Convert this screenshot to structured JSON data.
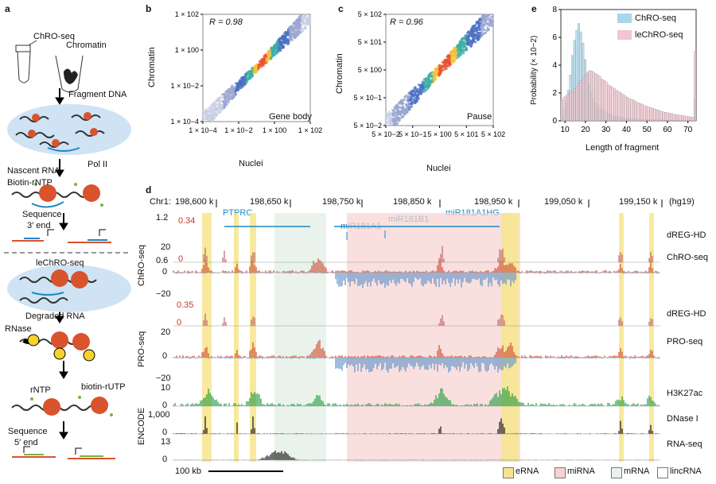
{
  "panels": {
    "a": "a",
    "b": "b",
    "c": "c",
    "d": "d",
    "e": "e"
  },
  "panel_a": {
    "top_title": "ChRO-seq",
    "chromatin": "Chromatin",
    "fragment": "Fragment DNA",
    "nascent": "Nascent RNA",
    "biotin_rntp": "Biotin-rNTP",
    "pol2": "Pol II",
    "sequence": "Sequence",
    "end3": "3′ end",
    "bottom_title": "leChRO-seq",
    "degraded": "Degraded RNA",
    "rnase": "RNase",
    "rntp": "rNTP",
    "biotin_rutp": "biotin-rUTP",
    "end5": "5′ end"
  },
  "colors": {
    "blue": "#5f8fc9",
    "red": "#cf4a32",
    "green": "#1f9a3e",
    "erna": "#f7e58d",
    "mirna": "#f6d3d0",
    "mrna": "#e9f3ec",
    "chro_hist": "#a9d6ea",
    "lechro_hist": "#f2c6cf"
  },
  "chart_data": [
    {
      "type": "scatter",
      "panel": "b",
      "xlabel": "Nuclei",
      "ylabel": "Chromatin",
      "annotation_r": "R = 0.98",
      "corner_label": "Gene body",
      "x_ticks": [
        "1 × 10−4",
        "1 × 10−2",
        "1 × 100",
        "1 × 102"
      ],
      "y_ticks": [
        "1 × 102",
        "1 × 100",
        "1 × 10−2",
        "1 × 10−4"
      ],
      "xlim": [
        -4,
        2
      ],
      "ylim": [
        -4,
        2
      ],
      "points": [
        {
          "x": -0.2,
          "y": -0.2
        },
        {
          "x": 0,
          "y": 0
        },
        {
          "x": 0.3,
          "y": 0.3
        },
        {
          "x": -1,
          "y": -1
        },
        {
          "x": -2,
          "y": -2
        },
        {
          "x": 1,
          "y": 1
        },
        {
          "x": -3,
          "y": -3
        }
      ]
    },
    {
      "type": "scatter",
      "panel": "c",
      "xlabel": "Nuclei",
      "ylabel": "Chromatin",
      "annotation_r": "R = 0.96",
      "corner_label": "Pause",
      "x_ticks": [
        "5 × 10−2",
        "5 × 10−1",
        "5 × 100",
        "5 × 101",
        "5 × 102"
      ],
      "y_ticks": [
        "5 × 102",
        "5 × 101",
        "5 × 100",
        "5 × 10−1",
        "5 × 10−2"
      ],
      "xlim": [
        -2,
        2.5
      ],
      "ylim": [
        -2,
        2.5
      ],
      "points": [
        {
          "x": 0.5,
          "y": 0.5
        },
        {
          "x": 0.7,
          "y": 0.8
        },
        {
          "x": 0,
          "y": 0
        },
        {
          "x": 1.2,
          "y": 1.2
        },
        {
          "x": -1,
          "y": -1
        }
      ]
    },
    {
      "type": "bar",
      "panel": "e",
      "title": "",
      "xlabel": "Length of fragment",
      "ylabel": "Probability (× 10−2)",
      "ylim": [
        0,
        8
      ],
      "xlim": [
        8,
        74
      ],
      "x_ticks": [
        "10",
        "20",
        "30",
        "40",
        "50",
        "60",
        "70"
      ],
      "y_ticks": [
        "0",
        "2",
        "4",
        "6",
        "8"
      ],
      "series": [
        {
          "name": "ChRO-seq",
          "values": [
            0.4,
            0.8,
            1.3,
            2.2,
            3.3,
            4.7,
            5.8,
            6.5,
            7.0,
            6.4,
            5.6,
            4.4,
            3.4,
            2.6,
            2.0,
            1.6,
            1.3,
            1.1,
            0.9,
            0.8,
            0.7,
            0.6,
            0.5,
            0.45,
            0.4,
            0.35,
            0.3,
            0.28,
            0.25,
            0.22,
            0.2,
            0.18,
            0.16,
            0.15,
            0.14,
            0.13,
            0.12,
            0.11,
            0.1,
            0.1,
            0.09,
            0.09,
            0.08,
            0.08,
            0.07,
            0.07,
            0.06,
            0.06,
            0.05,
            0.05,
            0.05,
            0.05,
            0.04,
            0.04,
            0.04,
            0.04,
            0.03,
            0.03,
            0.03,
            0.03,
            0.03,
            0.03,
            0.03,
            1.6
          ]
        },
        {
          "name": "leChRO-seq",
          "values": [
            1.5,
            1.7,
            1.8,
            1.9,
            2.0,
            2.1,
            2.3,
            2.5,
            2.7,
            2.9,
            3.1,
            3.3,
            3.5,
            3.6,
            3.6,
            3.5,
            3.4,
            3.3,
            3.2,
            3.0,
            2.9,
            2.8,
            2.6,
            2.5,
            2.4,
            2.3,
            2.2,
            2.1,
            2.0,
            1.9,
            1.8,
            1.7,
            1.6,
            1.55,
            1.5,
            1.4,
            1.3,
            1.25,
            1.2,
            1.1,
            1.05,
            1.0,
            0.95,
            0.9,
            0.85,
            0.8,
            0.75,
            0.7,
            0.65,
            0.62,
            0.58,
            0.55,
            0.52,
            0.48,
            0.45,
            0.42,
            0.4,
            0.38,
            0.35,
            0.32,
            0.3,
            0.28,
            0.26,
            5.0
          ]
        }
      ]
    },
    {
      "type": "line",
      "panel": "d",
      "title": "Genome browser tracks",
      "chrom": "Chr1:",
      "assembly": "(hg19)",
      "positions": [
        "198,600 k",
        "198,650 k",
        "198,750 k",
        "198,850 k",
        "198,950 k",
        "199,050 k",
        "199,150 k"
      ],
      "genes": [
        "PTPRC",
        "miR181A1HG",
        "miR181A1",
        "miR181B1"
      ],
      "tracks": [
        {
          "name": "dREG-HD",
          "group": "ChRO-seq",
          "ticks": [
            "1.2",
            "0.6"
          ],
          "scores": [
            "0.34",
            "0"
          ]
        },
        {
          "name": "ChRO-seq",
          "group": "ChRO-seq",
          "ticks": [
            "20",
            "0",
            "−20"
          ]
        },
        {
          "name": "dREG-HD",
          "group": "PRO-seq",
          "ticks": [],
          "scores": [
            "0.35",
            "0"
          ]
        },
        {
          "name": "PRO-seq",
          "group": "PRO-seq",
          "ticks": [
            "20",
            "0",
            "−20"
          ]
        },
        {
          "name": "H3K27ac",
          "group": "ENCODE",
          "ticks": [
            "10",
            "0"
          ]
        },
        {
          "name": "DNase I",
          "group": "ENCODE",
          "ticks": [
            "1,000",
            "0"
          ]
        },
        {
          "name": "RNA-seq",
          "group": "ENCODE",
          "ticks": [
            "13",
            "0"
          ]
        }
      ],
      "group_labels": [
        "ChRO-seq",
        "PRO-seq",
        "ENCODE"
      ],
      "legend": [
        "eRNA",
        "miRNA",
        "mRNA",
        "lincRNA"
      ],
      "scale_bar": "100 kb"
    }
  ]
}
